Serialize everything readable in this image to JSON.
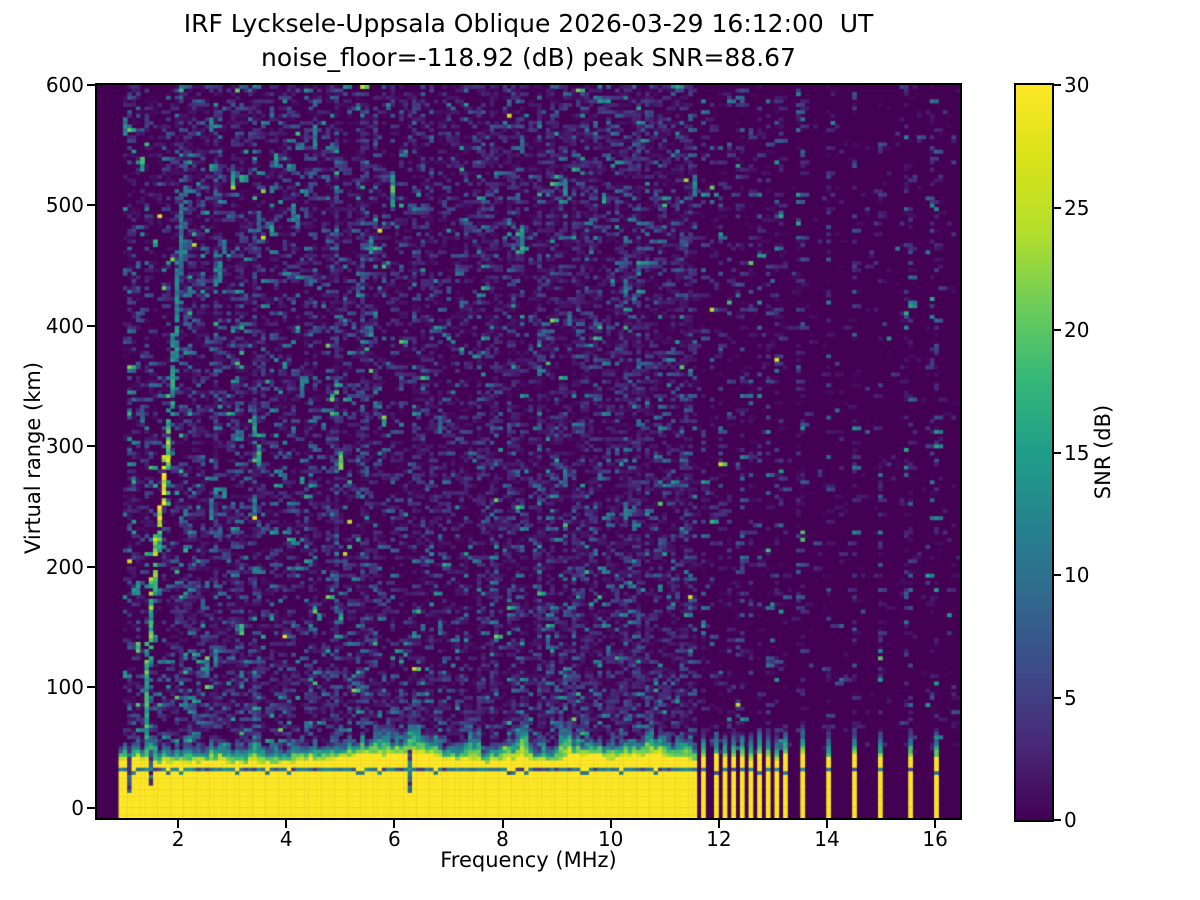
{
  "figure": {
    "title_line1": "IRF Lycksele-Uppsala Oblique 2026-03-29 16:12:00  UT",
    "title_line2": "noise_floor=-118.92 (dB) peak SNR=88.67"
  },
  "axes": {
    "xlabel": "Frequency (MHz)",
    "ylabel": "Virtual range (km)",
    "xlim": [
      0.5,
      16.46
    ],
    "ylim": [
      -8.3,
      600
    ],
    "xticks": [
      2,
      4,
      6,
      8,
      10,
      12,
      14,
      16
    ],
    "yticks": [
      0,
      100,
      200,
      300,
      400,
      500,
      600
    ]
  },
  "colorbar": {
    "label": "SNR (dB)",
    "ticks": [
      0,
      5,
      10,
      15,
      20,
      25,
      30
    ],
    "min": 0,
    "max": 30,
    "colormap": "viridis"
  },
  "chart_data": {
    "type": "heatmap",
    "station_pair": "IRF Lycksele-Uppsala",
    "sounding_mode": "Oblique",
    "timestamp_ut": "2026-03-29 16:12:00 UT",
    "noise_floor_db": -118.92,
    "peak_snr_db": 88.67,
    "xlabel": "Frequency (MHz)",
    "ylabel": "Virtual range (km)",
    "value_label": "SNR (dB)",
    "xlim": [
      0.5,
      16.46
    ],
    "ylim": [
      -8.3,
      600
    ],
    "clim": [
      0,
      30
    ],
    "colormap": "viridis",
    "grid": {
      "cols": 200,
      "rows": 204
    },
    "render_seed": 20260329,
    "features": {
      "blank_below_mhz": 0.93,
      "ground_band": {
        "f_start": 0.93,
        "f_end": 11.58,
        "top_km_mean": 41,
        "top_km_jitter": 4,
        "fringe_km": 14,
        "dark_line_km": 34,
        "notches": [
          {
            "f": 1.07,
            "top_km": 12
          },
          {
            "f": 1.47,
            "top_km": 20
          },
          {
            "f": 6.22,
            "top_km": 14
          }
        ]
      },
      "rf_stripes": {
        "freqs": [
          11.7,
          11.9,
          12.06,
          12.22,
          12.4,
          12.56,
          12.72,
          12.89,
          13.05,
          13.15,
          13.5,
          14.0,
          14.5,
          14.97,
          15.5,
          15.98
        ],
        "width_mhz": 0.08,
        "top_km": 43,
        "fringe_km": 24
      },
      "echo_trace": {
        "f_km_points": [
          [
            1.36,
            60
          ],
          [
            1.41,
            130
          ],
          [
            1.52,
            200
          ],
          [
            1.62,
            240
          ],
          [
            1.71,
            268
          ],
          [
            1.79,
            320
          ],
          [
            1.87,
            372
          ],
          [
            1.95,
            430
          ],
          [
            2.02,
            482
          ],
          [
            2.1,
            540
          ]
        ],
        "snr_db": [
          16,
          18,
          20,
          24,
          30,
          18,
          14,
          12,
          11,
          9
        ]
      },
      "noise_speckle": [
        {
          "f_range": [
            1.0,
            6.0
          ],
          "density": 0.38,
          "mean_db": 3.2,
          "streak_prob": 0.32,
          "streak_db": [
            9,
            21
          ]
        },
        {
          "f_range": [
            6.0,
            11.58
          ],
          "density": 0.44,
          "mean_db": 2.6,
          "streak_prob": 0.14,
          "streak_db": [
            8,
            15
          ]
        },
        {
          "f_range": [
            11.58,
            16.46
          ],
          "density": 0.05,
          "mean_db": 2.0,
          "streak_prob": 0,
          "streak_db": [
            0,
            0
          ]
        }
      ],
      "near_band_boost": {
        "km_range": [
          52,
          115
        ],
        "extra_density": 0.17
      },
      "enhanced_columns_mhz": [
        2.72,
        3.38,
        4.9,
        5.45,
        8.68,
        9.33,
        10.5
      ],
      "stripe_column_noise": {
        "density": 0.3,
        "mean_db": 3.2
      }
    }
  }
}
